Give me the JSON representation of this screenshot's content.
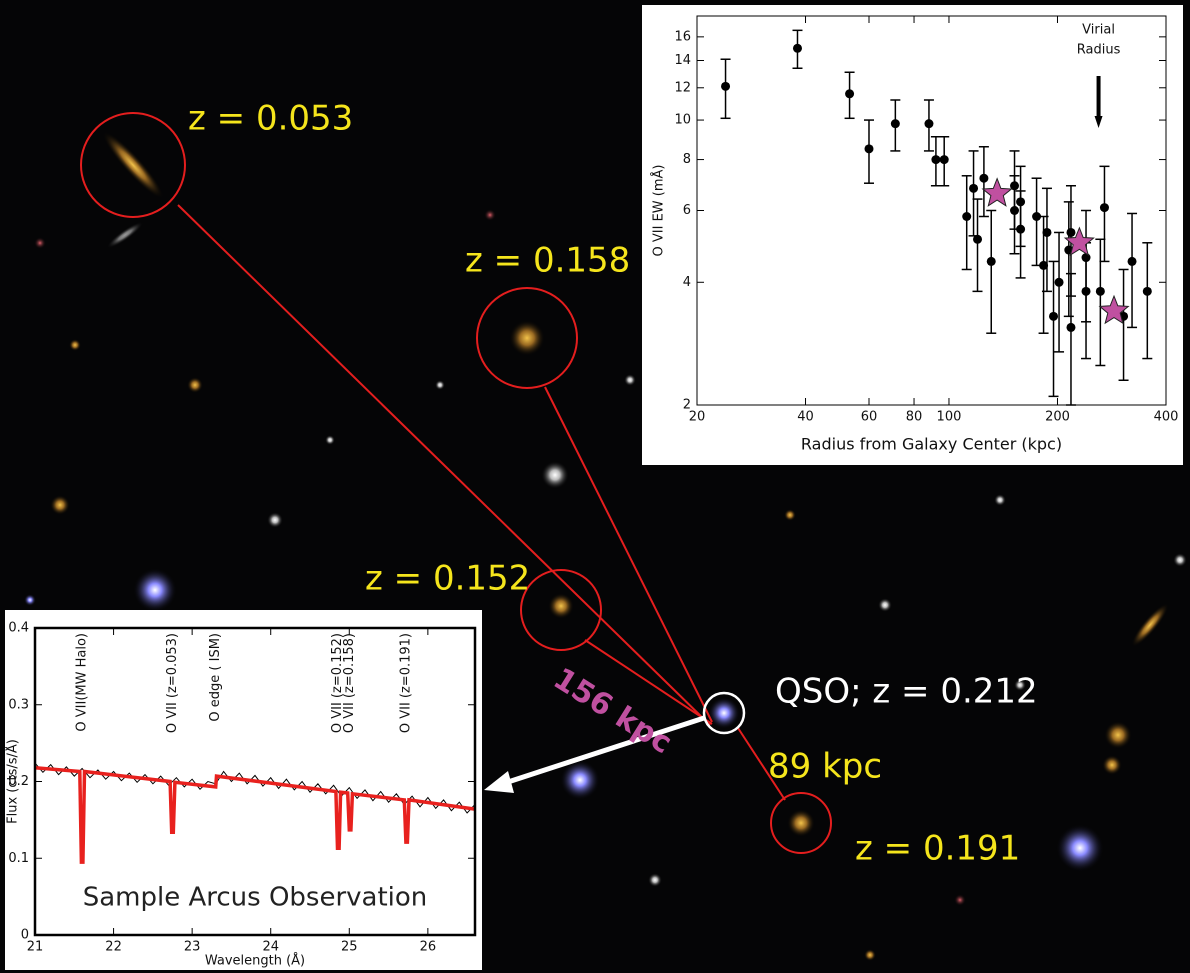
{
  "image": {
    "labels": [
      "z = 0.053",
      "z = 0.158",
      "z = 0.152",
      "QSO; z = 0.212",
      "89 kpc",
      "z = 0.191",
      "156 kpc"
    ]
  },
  "chart_data": [
    {
      "type": "scatter",
      "xlabel": "Radius from Galaxy Center (kpc)",
      "ylabel": "O VII EW (mÅ)",
      "xscale": "log",
      "yscale": "log",
      "xlim": [
        20,
        400
      ],
      "ylim": [
        2,
        18
      ],
      "xticks": [
        20,
        40,
        60,
        80,
        100,
        200,
        400
      ],
      "yticks": [
        2,
        4,
        6,
        8,
        10,
        12,
        14,
        16
      ],
      "series": [
        {
          "color": "#000000",
          "marker": "circle",
          "x": [
            24,
            38,
            53,
            60,
            71,
            88,
            92,
            97,
            112,
            117,
            120,
            125,
            131,
            152,
            152,
            158,
            158,
            175,
            183,
            187,
            195,
            202,
            215,
            218,
            218,
            240,
            240,
            263,
            270,
            305,
            322,
            355
          ],
          "values": [
            12.1,
            15.0,
            11.6,
            8.5,
            9.8,
            9.8,
            8.0,
            8.0,
            5.8,
            6.8,
            5.1,
            7.2,
            4.5,
            6.9,
            6.0,
            6.3,
            5.4,
            5.8,
            4.4,
            5.3,
            3.3,
            4.0,
            4.8,
            5.3,
            3.1,
            4.6,
            3.8,
            3.8,
            6.1,
            3.3,
            4.5,
            3.8
          ],
          "errors": [
            2.0,
            1.6,
            1.5,
            1.5,
            1.4,
            1.4,
            1.1,
            1.1,
            1.5,
            1.6,
            1.3,
            1.4,
            1.5,
            1.5,
            1.3,
            1.4,
            1.3,
            1.4,
            1.4,
            1.5,
            1.2,
            1.3,
            1.5,
            1.6,
            1.1,
            1.4,
            1.2,
            1.3,
            1.6,
            1.0,
            1.4,
            1.2
          ]
        },
        {
          "color": "#c050a0",
          "marker": "star",
          "x": [
            136,
            230,
            287
          ],
          "values": [
            6.6,
            5.0,
            3.4
          ]
        }
      ],
      "annotations": [
        {
          "text": [
            "Virial",
            "Radius"
          ],
          "x": 260
        }
      ]
    },
    {
      "type": "line",
      "xlabel": "Wavelength (Å)",
      "ylabel": "Flux (cts/s/Å)",
      "xlim": [
        21,
        26.6
      ],
      "ylim": [
        0,
        0.4
      ],
      "xticks": [
        21,
        22,
        23,
        24,
        25,
        26
      ],
      "yticks": [
        0,
        0.1,
        0.2,
        0.3,
        0.4
      ],
      "text": "Sample Arcus Observation",
      "series": [
        {
          "color": "#000000",
          "x": [
            21.0,
            21.1,
            21.2,
            21.3,
            21.4,
            21.5,
            21.6,
            21.7,
            21.8,
            21.9,
            22.0,
            22.1,
            22.2,
            22.3,
            22.4,
            22.5,
            22.6,
            22.7,
            22.8,
            22.9,
            23.0,
            23.1,
            23.2,
            23.3,
            23.4,
            23.5,
            23.6,
            23.7,
            23.8,
            23.9,
            24.0,
            24.1,
            24.2,
            24.3,
            24.4,
            24.5,
            24.6,
            24.7,
            24.8,
            24.9,
            25.0,
            25.1,
            25.2,
            25.3,
            25.4,
            25.5,
            25.6,
            25.7,
            25.8,
            25.9,
            26.0,
            26.1,
            26.2,
            26.3,
            26.4,
            26.5,
            26.6
          ],
          "values": [
            0.224,
            0.212,
            0.222,
            0.209,
            0.219,
            0.207,
            0.217,
            0.205,
            0.215,
            0.203,
            0.213,
            0.201,
            0.211,
            0.199,
            0.209,
            0.197,
            0.207,
            0.195,
            0.205,
            0.193,
            0.203,
            0.19,
            0.2,
            0.197,
            0.213,
            0.2,
            0.211,
            0.197,
            0.208,
            0.194,
            0.205,
            0.191,
            0.203,
            0.189,
            0.2,
            0.186,
            0.197,
            0.184,
            0.195,
            0.181,
            0.192,
            0.178,
            0.189,
            0.175,
            0.187,
            0.173,
            0.184,
            0.17,
            0.181,
            0.167,
            0.179,
            0.165,
            0.176,
            0.162,
            0.173,
            0.159,
            0.17
          ]
        },
        {
          "color": "#e8211e",
          "x": [
            21.0,
            21.57,
            21.59,
            21.61,
            21.63,
            22.72,
            22.74,
            22.76,
            22.78,
            23.3,
            23.31,
            24.83,
            24.85,
            24.87,
            24.89,
            24.98,
            25.0,
            25.02,
            25.04,
            25.7,
            25.72,
            25.74,
            25.76,
            26.6
          ],
          "values": [
            0.218,
            0.213,
            0.095,
            0.095,
            0.213,
            0.2,
            0.134,
            0.134,
            0.199,
            0.193,
            0.207,
            0.187,
            0.113,
            0.113,
            0.186,
            0.185,
            0.137,
            0.137,
            0.184,
            0.176,
            0.121,
            0.121,
            0.176,
            0.164
          ]
        }
      ],
      "annotations": [
        {
          "text": "O VII(MW Halo)",
          "x": 21.6
        },
        {
          "text": "O VII (z=0.053)",
          "x": 22.75
        },
        {
          "text": "O edge ( ISM)",
          "x": 23.3
        },
        {
          "text": "O VII (z=0.152)",
          "x": 24.85
        },
        {
          "text": "O VII (z=0.158)",
          "x": 25.0
        },
        {
          "text": "O VII (z=0.191)",
          "x": 25.72
        }
      ]
    }
  ]
}
